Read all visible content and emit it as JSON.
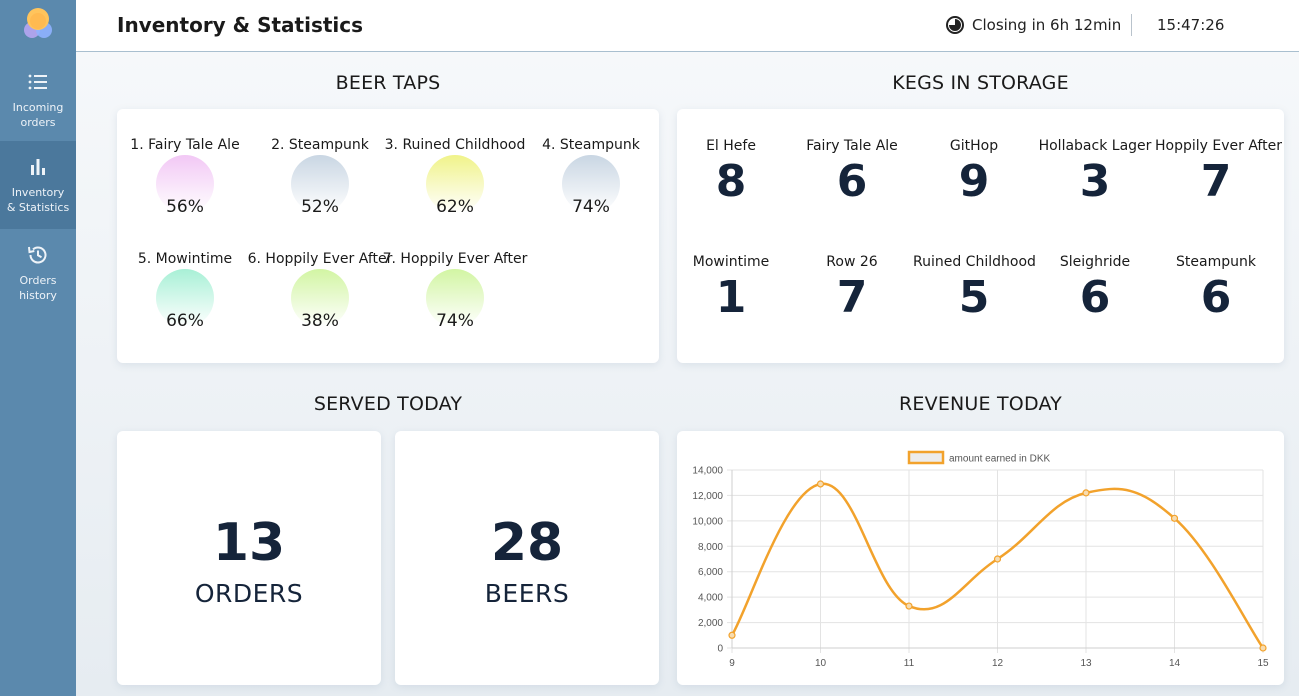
{
  "sidebar": {
    "items": [
      {
        "label": "Incoming\norders",
        "icon": "list-icon"
      },
      {
        "label": "Inventory\n& Statistics",
        "icon": "bar-chart-icon"
      },
      {
        "label": "Orders\nhistory",
        "icon": "history-icon"
      }
    ]
  },
  "header": {
    "title": "Inventory & Statistics",
    "closing": "Closing in 6h 12min",
    "time": "15:47:26"
  },
  "sections": {
    "beer_taps": "BEER TAPS",
    "kegs": "KEGS IN STORAGE",
    "served": "SERVED TODAY",
    "revenue": "REVENUE TODAY"
  },
  "taps": [
    {
      "name": "1. Fairy Tale Ale",
      "pct": "56%",
      "color": "#f2c8f5"
    },
    {
      "name": "2. Steampunk",
      "pct": "52%",
      "color": "#c9d6e3"
    },
    {
      "name": "3. Ruined Childhood",
      "pct": "62%",
      "color": "#f0f38a"
    },
    {
      "name": "4. Steampunk",
      "pct": "74%",
      "color": "#c9d6e3"
    },
    {
      "name": "5. Mowintime",
      "pct": "66%",
      "color": "#a8f0d6"
    },
    {
      "name": "6. Hoppily Ever After",
      "pct": "38%",
      "color": "#d2f5a3"
    },
    {
      "name": "7. Hoppily Ever After",
      "pct": "74%",
      "color": "#d2f5a3"
    }
  ],
  "kegs": [
    {
      "name": "El Hefe",
      "count": "8"
    },
    {
      "name": "Fairy Tale Ale",
      "count": "6"
    },
    {
      "name": "GitHop",
      "count": "9"
    },
    {
      "name": "Hollaback Lager",
      "count": "3"
    },
    {
      "name": "Hoppily Ever After",
      "count": "7"
    },
    {
      "name": "Mowintime",
      "count": "1"
    },
    {
      "name": "Row 26",
      "count": "7"
    },
    {
      "name": "Ruined Childhood",
      "count": "5"
    },
    {
      "name": "Sleighride",
      "count": "6"
    },
    {
      "name": "Steampunk",
      "count": "6"
    }
  ],
  "served": {
    "orders_count": "13",
    "orders_label": "ORDERS",
    "beers_count": "28",
    "beers_label": "BEERS"
  },
  "chart_data": {
    "type": "line",
    "x": [
      9,
      10,
      11,
      12,
      13,
      14,
      15
    ],
    "series": [
      {
        "name": "amount earned in DKK",
        "values": [
          1000,
          12900,
          3300,
          7000,
          12200,
          10200,
          0
        ],
        "color": "#f2a22c"
      }
    ],
    "ylim": [
      0,
      14000
    ],
    "yticks": [
      "0",
      "2,000",
      "4,000",
      "6,000",
      "8,000",
      "10,000",
      "12,000",
      "14,000"
    ],
    "xticks": [
      "9",
      "10",
      "11",
      "12",
      "13",
      "14",
      "15"
    ],
    "grid": true,
    "legend": "top"
  }
}
